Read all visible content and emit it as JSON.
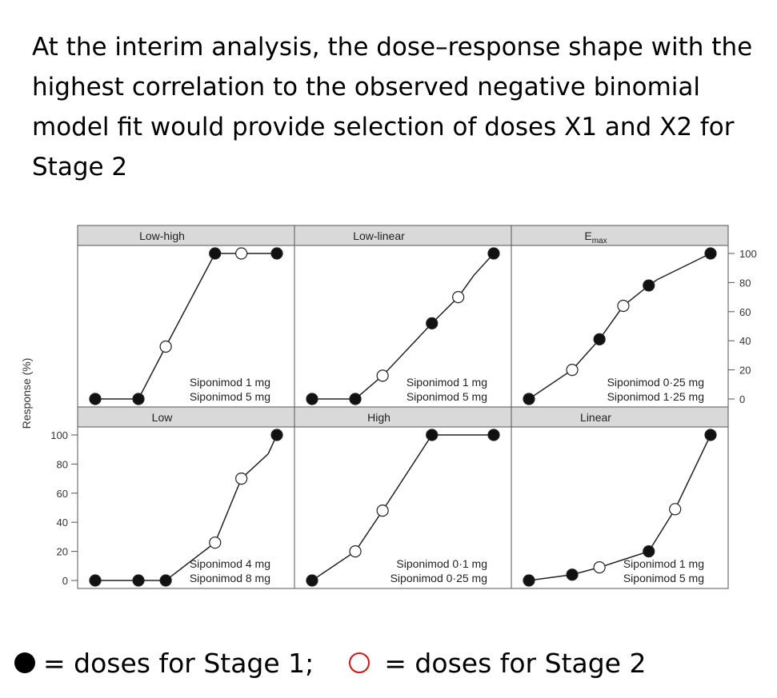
{
  "heading": "At the interim analysis, the dose–response shape with the highest correlation to the observed negative binomial model fit would provide selection of doses X1 and X2 for Stage 2",
  "legend": {
    "stage1": "= doses for Stage 1;",
    "stage2": "= doses for Stage 2",
    "stage2_color": "#e11111"
  },
  "chart_data": {
    "type": "line",
    "ylabel": "Response (%)",
    "ylim": [
      0,
      100
    ],
    "yticks": [
      0,
      20,
      40,
      60,
      80,
      100
    ],
    "legend_placement": "bottom",
    "panels": [
      {
        "title": "Low-high",
        "x": [
          0,
          0.1,
          0.25,
          1,
          2,
          3,
          5
        ],
        "y": [
          0,
          0,
          36,
          100,
          100,
          100,
          100
        ],
        "stage2": [
          false,
          false,
          true,
          false,
          true,
          false,
          false
        ],
        "stage1": [
          true,
          true,
          false,
          true,
          false,
          false,
          true
        ],
        "selection": [
          "Siponimod 1 mg",
          "Siponimod 5 mg"
        ]
      },
      {
        "title": "Low-linear",
        "x": [
          0,
          0.1,
          0.25,
          1,
          2,
          3,
          5
        ],
        "y": [
          0,
          0,
          16,
          52,
          70,
          85,
          100
        ],
        "stage2": [
          false,
          false,
          true,
          false,
          true,
          false,
          false
        ],
        "stage1": [
          true,
          true,
          false,
          true,
          false,
          false,
          true
        ],
        "selection": [
          "Siponimod 1 mg",
          "Siponimod 5 mg"
        ]
      },
      {
        "title": "E",
        "title_sub": "max",
        "x": [
          0,
          0.1,
          0.25,
          0.5,
          1,
          1.25,
          5
        ],
        "y": [
          0,
          20,
          41,
          64,
          78,
          82,
          100
        ],
        "stage2": [
          false,
          true,
          false,
          true,
          false,
          false,
          false
        ],
        "stage1": [
          true,
          false,
          true,
          false,
          true,
          false,
          true
        ],
        "selection": [
          "Siponimod 0·25 mg",
          "Siponimod 1·25 mg"
        ]
      },
      {
        "title": "Low",
        "x": [
          0,
          0.1,
          0.25,
          1,
          2,
          4,
          5
        ],
        "y": [
          0,
          0,
          0,
          26,
          70,
          87,
          100
        ],
        "stage2": [
          false,
          false,
          false,
          true,
          true,
          false,
          false
        ],
        "stage1": [
          true,
          true,
          true,
          false,
          false,
          false,
          true
        ],
        "selection": [
          "Siponimod 4 mg",
          "Siponimod 8 mg"
        ]
      },
      {
        "title": "High",
        "x": [
          0,
          0.1,
          0.25,
          1,
          5
        ],
        "y": [
          0,
          20,
          48,
          100,
          100
        ],
        "stage2": [
          false,
          true,
          true,
          false,
          false
        ],
        "stage1": [
          true,
          false,
          false,
          true,
          true
        ],
        "selection": [
          "Siponimod 0·1 mg",
          "Siponimod 0·25 mg"
        ]
      },
      {
        "title": "Linear",
        "x": [
          0,
          0.1,
          0.25,
          1,
          2,
          5
        ],
        "y": [
          0,
          4,
          9,
          20,
          49,
          100
        ],
        "stage2": [
          false,
          false,
          true,
          false,
          true,
          false
        ],
        "stage1": [
          true,
          true,
          false,
          true,
          false,
          true
        ],
        "selection": [
          "Siponimod 1 mg",
          "Siponimod 5 mg"
        ]
      }
    ]
  }
}
